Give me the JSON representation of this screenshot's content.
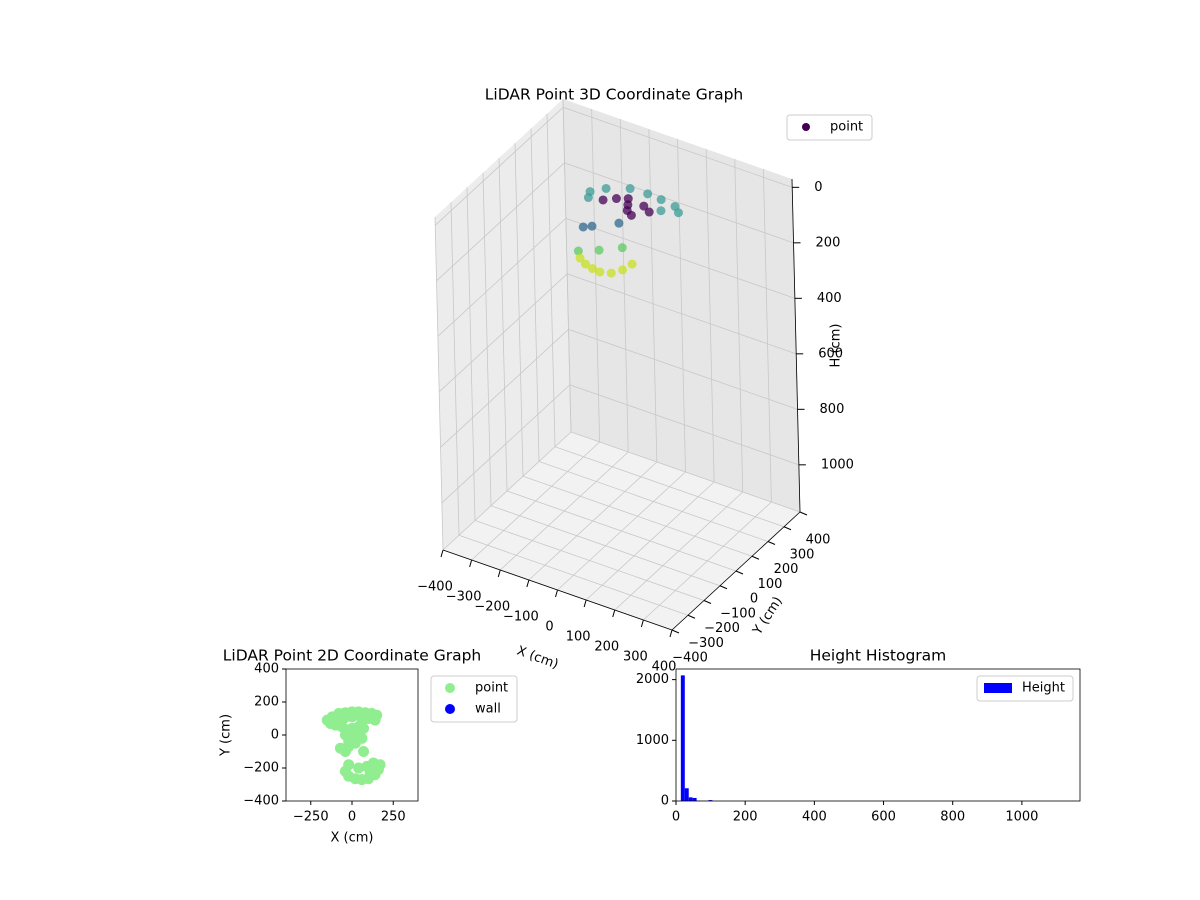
{
  "chart_data": [
    {
      "type": "scatter3d",
      "title": "LiDAR Point 3D Coordinate Graph",
      "xlabel": "X (cm)",
      "ylabel": "Y (cm)",
      "zlabel": "H (cm)",
      "xlim": [
        -400,
        400
      ],
      "ylim": [
        -400,
        400
      ],
      "zlim": [
        -30,
        1170
      ],
      "invert_z": true,
      "grid": true,
      "legend": "upper right",
      "xticks": [
        {
          "value": -400,
          "label": "−400"
        },
        {
          "value": -300,
          "label": "−300"
        },
        {
          "value": -200,
          "label": "−200"
        },
        {
          "value": -100,
          "label": "−100"
        },
        0,
        100,
        200,
        300,
        400
      ],
      "yticks": [
        {
          "value": -400,
          "label": "−400"
        },
        {
          "value": -300,
          "label": "−300"
        },
        {
          "value": -200,
          "label": "−200"
        },
        {
          "value": -100,
          "label": "−100"
        },
        0,
        100,
        200,
        300,
        400
      ],
      "zticks": [
        0,
        200,
        400,
        600,
        800,
        1000
      ],
      "series": [
        {
          "name": "point",
          "color": "#440154",
          "x": [
            -112,
            -80,
            -19,
            40,
            90,
            144,
            170,
            -100,
            120,
            16,
            -30,
            60,
            -60,
            30,
            90,
            0,
            50,
            -20,
            -40,
            40,
            10,
            112,
            60,
            30,
            60,
            90,
            118,
            150,
            170,
            178
          ],
          "y": [
            52,
            95,
            136,
            140,
            135,
            125,
            100,
            20,
            80,
            59,
            70,
            80,
            40,
            30,
            60,
            90,
            20,
            -101,
            -120,
            -40,
            -240,
            -148,
            -200,
            -265,
            -285,
            -295,
            -299,
            -285,
            -250,
            -205
          ],
          "z": [
            15,
            15,
            15,
            15,
            15,
            15,
            15,
            15,
            15,
            20,
            20,
            20,
            20,
            20,
            20,
            20,
            25,
            25,
            25,
            25,
            30,
            30,
            30,
            35,
            35,
            35,
            35,
            35,
            35,
            35
          ],
          "colors": [
            "#3e9c98",
            "#3e9c98",
            "#3e9c98",
            "#3e9c98",
            "#3e9c98",
            "#3e9c98",
            "#3e9c98",
            "#3e9c98",
            "#3e9c98",
            "#440154",
            "#440154",
            "#440154",
            "#440154",
            "#440154",
            "#440154",
            "#440154",
            "#440154",
            "#31688e",
            "#31688e",
            "#31688e",
            "#5ec962",
            "#5ec962",
            "#5ec962",
            "#c8e020",
            "#c8e020",
            "#c8e020",
            "#c8e020",
            "#c8e020",
            "#c8e020",
            "#c8e020"
          ]
        }
      ]
    },
    {
      "type": "scatter",
      "title": "LiDAR Point 2D Coordinate Graph",
      "xlabel": "X (cm)",
      "ylabel": "Y (cm)",
      "xlim": [
        -400,
        400
      ],
      "ylim": [
        -400,
        400
      ],
      "legend": "outside upper right",
      "xticks": [
        {
          "value": -250,
          "label": "−250"
        },
        0,
        250
      ],
      "yticks": [
        {
          "value": -400,
          "label": "−400"
        },
        {
          "value": -200,
          "label": "−200"
        },
        0,
        200,
        400
      ],
      "series": [
        {
          "name": "point",
          "color": "#90ee90",
          "x": [
            -150,
            -120,
            -80,
            -40,
            0,
            40,
            80,
            120,
            150,
            -130,
            -90,
            -50,
            0,
            50,
            100,
            140,
            -100,
            60,
            -60,
            -30,
            0,
            40,
            70,
            -40,
            0,
            30,
            60,
            -20,
            20,
            -70,
            -40,
            70,
            -20,
            -20,
            -40,
            -20,
            20,
            60,
            100,
            140,
            160,
            170,
            130,
            90,
            40,
            110
          ],
          "y": [
            90,
            110,
            130,
            135,
            140,
            140,
            135,
            130,
            120,
            70,
            80,
            100,
            110,
            115,
            100,
            90,
            60,
            80,
            50,
            30,
            40,
            50,
            40,
            0,
            -10,
            10,
            -20,
            -40,
            -50,
            -80,
            -100,
            -100,
            -70,
            -180,
            -220,
            -250,
            -265,
            -270,
            -265,
            -240,
            -210,
            -180,
            -170,
            -190,
            -200,
            -230
          ]
        },
        {
          "name": "wall",
          "color": "#0000ff",
          "x": [],
          "y": []
        }
      ]
    },
    {
      "type": "histogram",
      "title": "Height Histogram",
      "legend": "upper right",
      "series_name": "Height",
      "color": "#0000ff",
      "xlim": [
        0,
        1168
      ],
      "ylim": [
        0,
        2175
      ],
      "xticks": [
        0,
        200,
        400,
        600,
        800,
        1000
      ],
      "yticks": [
        0,
        1000,
        2000
      ],
      "bins": [
        14,
        25.4,
        36.8,
        48.2,
        59.6,
        71,
        82.4,
        93.8,
        105.2,
        116.6,
        128,
        139.4,
        150.8,
        162.2,
        173.6,
        185,
        196.4,
        207.8,
        219.2,
        230.6,
        242,
        253.4,
        264.8,
        276.2,
        287.6,
        299,
        310.4,
        321.8,
        333.2,
        344.6,
        356,
        367.4,
        378.8,
        390.2,
        401.6,
        413,
        424.4,
        435.8,
        447.2,
        458.6,
        470,
        481.4,
        492.8,
        504.2,
        515.6,
        527,
        538.4,
        549.8,
        561.2,
        572.6,
        584,
        595.4,
        606.8,
        618.2,
        629.6,
        641,
        652.4,
        663.8,
        675.2,
        686.6,
        698,
        709.4,
        720.8,
        732.2,
        743.6,
        755,
        766.4,
        777.8,
        789.2,
        800.6,
        812,
        823.4,
        834.8,
        846.2,
        857.6,
        869,
        880.4,
        891.8,
        903.2,
        914.6,
        926,
        937.4,
        948.8,
        960.2,
        971.6,
        983,
        994.4,
        1005.8,
        1017.2,
        1028.6,
        1040,
        1051.4,
        1062.8,
        1074.2,
        1085.6,
        1097,
        1108.4,
        1119.8,
        1131.2,
        1142.6,
        1154
      ],
      "counts": [
        2070,
        210,
        60,
        50,
        5,
        3,
        3,
        15,
        0,
        0,
        0,
        0,
        0,
        0,
        0,
        0,
        0,
        0,
        0,
        0,
        0,
        0,
        0,
        0,
        0,
        0,
        0,
        0,
        0,
        0,
        0,
        0,
        0,
        0,
        0,
        0,
        0,
        0,
        0,
        0,
        0,
        0,
        0,
        0,
        0,
        0,
        0,
        0,
        0,
        0,
        0,
        0,
        0,
        0,
        0,
        0,
        0,
        0,
        0,
        0,
        0,
        0,
        0,
        0,
        0,
        0,
        0,
        0,
        0,
        0,
        0,
        0,
        0,
        0,
        0,
        0,
        0,
        0,
        0,
        0,
        0,
        0,
        0,
        0,
        0,
        0,
        0,
        0,
        0,
        0,
        0,
        0,
        0,
        0,
        0,
        0,
        0,
        0,
        0,
        1
      ]
    }
  ]
}
